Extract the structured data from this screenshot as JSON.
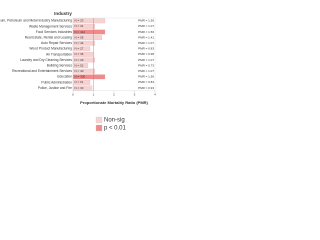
{
  "chart_data": {
    "type": "hbar",
    "title": "Industry",
    "x_label": "Proportionate Mortality Ratio (PMR)",
    "categories": [
      "Petroleum, Petroleum and Metal Industry Manufacturing",
      "Waste Management Services",
      "Food Services Industries",
      "Real Estate, Rental and Leasing",
      "Auto Repair Services",
      "Wood Product Manufacturing",
      "Air Transportation",
      "Laundry and Dry Cleaning Services",
      "Building Services",
      "Recreational and Entertainment Services",
      "Education",
      "Public Administration",
      "Police, Justice and Fire"
    ],
    "count_labels": [
      "N = 23",
      "N = 31",
      "N = 412",
      "N = 58",
      "N = 44",
      "N = 27",
      "N = 36",
      "N = 29",
      "N = 52",
      "N = 40",
      "N = 305",
      "N = 61",
      "N = 33"
    ],
    "series": [
      {
        "name": "Non-sig",
        "color": "#f6d3d3",
        "values": [
          1.56,
          1.07,
          null,
          1.41,
          1.07,
          0.83,
          0.98,
          1.07,
          0.73,
          1.07,
          null,
          0.83,
          0.93
        ]
      },
      {
        "name": "p < 0.01",
        "color": "#f08a8a",
        "values": [
          null,
          null,
          1.56,
          null,
          null,
          null,
          null,
          null,
          null,
          null,
          1.56,
          null,
          null
        ]
      }
    ],
    "value_labels": [
      "PMR = 1.56",
      "PMR = 1.07",
      "PMR = 1.56",
      "PMR = 1.41",
      "PMR = 1.07",
      "PMR = 0.83",
      "PMR = 0.98",
      "PMR = 1.07",
      "PMR = 0.73",
      "PMR = 1.07",
      "PMR = 1.56",
      "PMR = 0.83",
      "PMR = 0.93"
    ],
    "xlim": [
      0,
      4
    ],
    "xticks": [
      0,
      1,
      2,
      3,
      4
    ],
    "reference_line": 1
  }
}
